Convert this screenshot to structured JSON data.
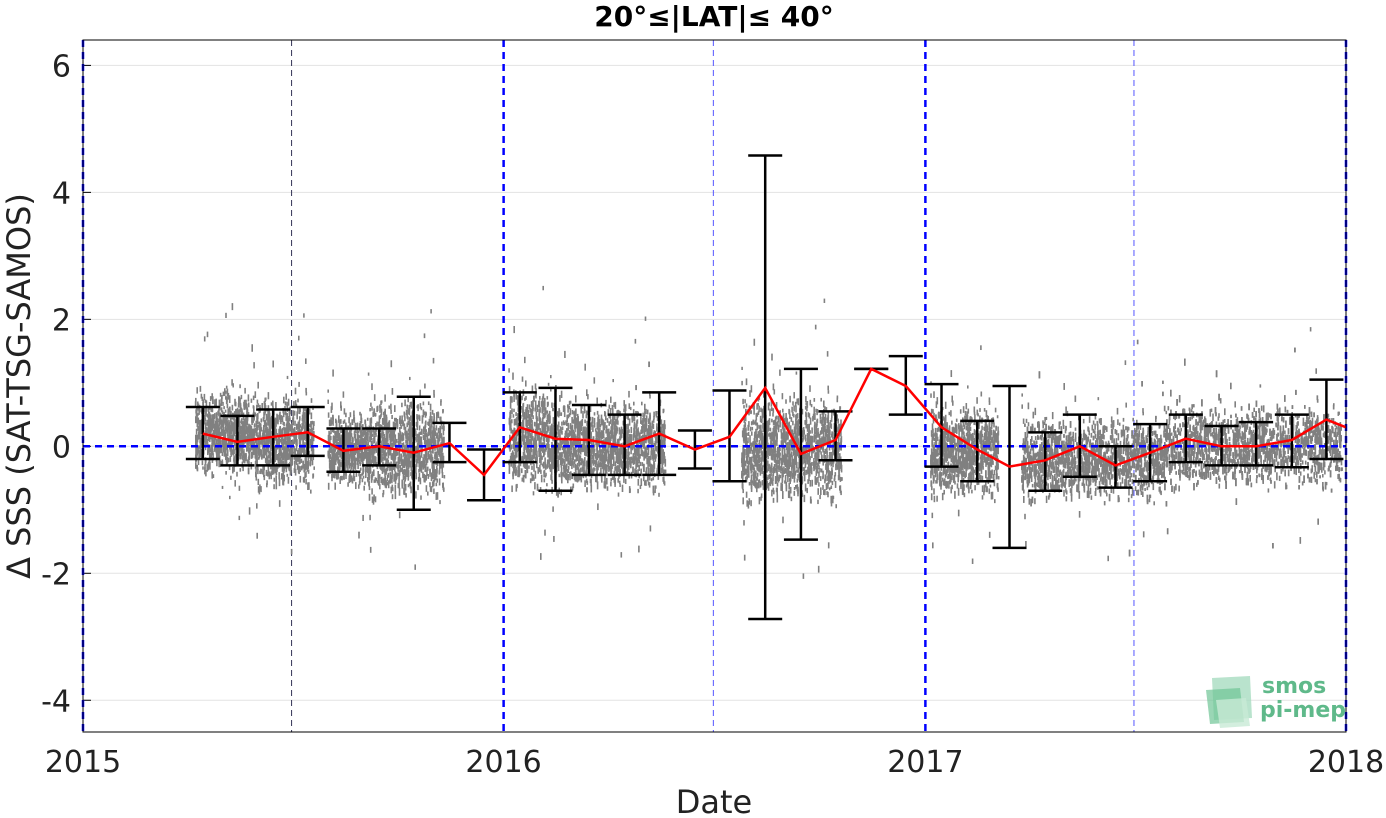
{
  "chart_data": {
    "type": "scatter",
    "title": "20°≤|LAT|≤ 40°",
    "xlabel": "Date",
    "ylabel": "Δ SSS (SAT-TSG-SAMOS)",
    "xlim": [
      "2015-01-01",
      "2018-01-01"
    ],
    "ylim": [
      -4.5,
      6.4
    ],
    "x_ticks": [
      "2015",
      "2016",
      "2017",
      "2018"
    ],
    "y_ticks": [
      "6",
      "4",
      "2",
      "0",
      "-2",
      "-4"
    ],
    "y_tick_values": [
      6,
      4,
      2,
      0,
      -2,
      -4
    ],
    "grid": true,
    "reference_line": {
      "y": 0,
      "style": "dashed",
      "color": "#0000ff"
    },
    "year_lines": [
      "2015-01-01",
      "2016-01-01",
      "2017-01-01",
      "2018-01-01"
    ],
    "half_year_lines": [
      "2015-07-01",
      "2016-07-01",
      "2017-07-01"
    ],
    "colors": {
      "scatter": "#808080",
      "mean": "#ff0000",
      "errorbar": "#000000",
      "reference": "#0000ff"
    },
    "series": [
      {
        "type": "line",
        "x": [
          "2015-04-15",
          "2015-05-15",
          "2015-06-15",
          "2015-07-15",
          "2015-08-15",
          "2015-09-15",
          "2015-10-15",
          "2015-11-15",
          "2015-12-15",
          "2016-01-15",
          "2016-02-15",
          "2016-03-15",
          "2016-04-15",
          "2016-05-15",
          "2016-06-15",
          "2016-07-15",
          "2016-08-15",
          "2016-09-15",
          "2016-10-15",
          "2016-11-15",
          "2016-12-15",
          "2017-01-15",
          "2017-02-15",
          "2017-03-15",
          "2017-04-15",
          "2017-05-15",
          "2017-06-15",
          "2017-07-15",
          "2017-08-15",
          "2017-09-15",
          "2017-10-15",
          "2017-11-15",
          "2017-12-15",
          "2018-01-01"
        ],
        "y": [
          0.2,
          0.07,
          0.15,
          0.22,
          -0.07,
          0.0,
          -0.1,
          0.05,
          -0.45,
          0.3,
          0.12,
          0.1,
          0.0,
          0.2,
          -0.05,
          0.15,
          0.92,
          -0.12,
          0.1,
          1.22,
          0.95,
          0.3,
          -0.05,
          -0.32,
          -0.22,
          0.0,
          -0.3,
          -0.1,
          0.12,
          0.0,
          0.0,
          0.1,
          0.42,
          0.3
        ]
      },
      {
        "type": "errorbar",
        "x": [
          "2015-04-15",
          "2015-05-15",
          "2015-06-15",
          "2015-07-15",
          "2015-08-15",
          "2015-09-15",
          "2015-10-15",
          "2015-11-15",
          "2015-12-15",
          "2016-01-15",
          "2016-02-15",
          "2016-03-15",
          "2016-04-15",
          "2016-05-15",
          "2016-06-15",
          "2016-07-15",
          "2016-08-15",
          "2016-09-15",
          "2016-10-15",
          "2016-11-15",
          "2016-12-15",
          "2017-01-15",
          "2017-02-15",
          "2017-03-15",
          "2017-04-15",
          "2017-05-15",
          "2017-06-15",
          "2017-07-15",
          "2017-08-15",
          "2017-09-15",
          "2017-10-15",
          "2017-11-15",
          "2017-12-15"
        ],
        "low": [
          -0.2,
          -0.3,
          -0.3,
          -0.15,
          -0.4,
          -0.3,
          -1.0,
          -0.25,
          -0.85,
          -0.25,
          -0.7,
          -0.45,
          -0.45,
          -0.45,
          -0.35,
          -0.55,
          -2.72,
          -1.47,
          -0.22,
          1.22,
          0.5,
          -0.32,
          -0.55,
          -1.6,
          -0.7,
          -0.48,
          -0.65,
          -0.55,
          -0.25,
          -0.3,
          -0.3,
          -0.33,
          -0.2
        ],
        "high": [
          0.62,
          0.48,
          0.58,
          0.62,
          0.28,
          0.28,
          0.78,
          0.37,
          -0.05,
          0.85,
          0.92,
          0.65,
          0.5,
          0.85,
          0.25,
          0.88,
          4.58,
          1.22,
          0.55,
          1.22,
          1.42,
          0.98,
          0.4,
          0.95,
          0.22,
          0.5,
          0.0,
          0.35,
          0.5,
          0.32,
          0.38,
          0.5,
          1.05
        ]
      }
    ],
    "scatter_clusters": [
      {
        "x0": "2015-04-08",
        "x1": "2015-05-30",
        "center": 0.25,
        "spread": 0.55
      },
      {
        "x0": "2015-05-30",
        "x1": "2015-07-20",
        "center": 0.1,
        "spread": 0.6
      },
      {
        "x0": "2015-08-01",
        "x1": "2015-09-05",
        "center": 0.0,
        "spread": 0.5
      },
      {
        "x0": "2015-09-05",
        "x1": "2015-11-10",
        "center": 0.0,
        "spread": 0.65
      },
      {
        "x0": "2016-01-05",
        "x1": "2016-02-10",
        "center": 0.2,
        "spread": 0.7
      },
      {
        "x0": "2016-02-10",
        "x1": "2016-05-20",
        "center": 0.05,
        "spread": 0.6
      },
      {
        "x0": "2016-07-25",
        "x1": "2016-10-20",
        "center": 0.0,
        "spread": 0.7
      },
      {
        "x0": "2017-01-05",
        "x1": "2017-03-05",
        "center": -0.05,
        "spread": 0.6
      },
      {
        "x0": "2017-03-25",
        "x1": "2017-07-25",
        "center": -0.15,
        "spread": 0.55
      },
      {
        "x0": "2017-07-25",
        "x1": "2017-12-28",
        "center": 0.05,
        "spread": 0.55
      }
    ]
  },
  "logo": {
    "line1": "smos",
    "line2": "pi-mep"
  }
}
